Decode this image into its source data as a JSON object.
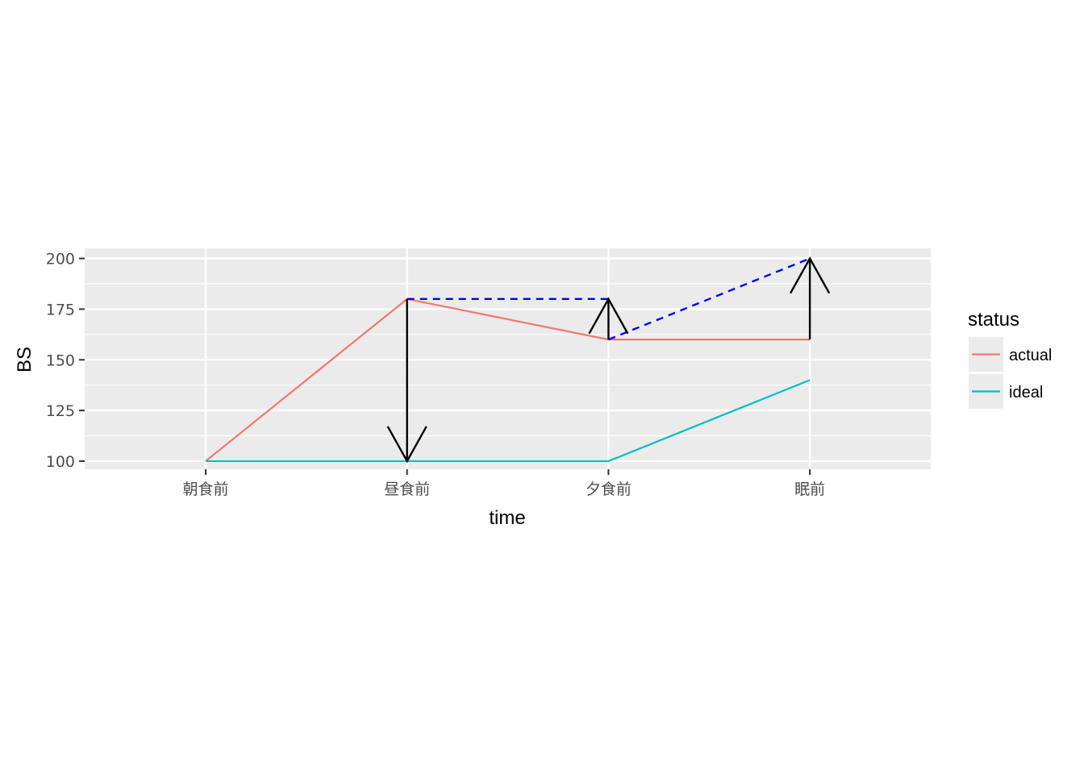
{
  "chart_data": {
    "type": "line",
    "categories": [
      "朝食前",
      "昼食前",
      "夕食前",
      "眠前"
    ],
    "xlabel": "time",
    "ylabel": "BS",
    "ylim": [
      96,
      205
    ],
    "yticks": [
      100,
      125,
      150,
      175,
      200
    ],
    "grid": true,
    "legend": {
      "title": "status",
      "position": "right"
    },
    "series": [
      {
        "name": "actual",
        "values": [
          100,
          180,
          160,
          160
        ],
        "color": "#F8766D"
      },
      {
        "name": "ideal",
        "values": [
          100,
          100,
          100,
          140
        ],
        "color": "#00BFC4"
      }
    ],
    "dashed_segments": [
      {
        "from": [
          "昼食前",
          180
        ],
        "to": [
          "夕食前",
          180
        ],
        "color": "#0000FF"
      },
      {
        "from": [
          "夕食前",
          160
        ],
        "to": [
          "眠前",
          200
        ],
        "color": "#0000FF"
      }
    ],
    "arrows": [
      {
        "x": "昼食前",
        "from": 180,
        "to": 100,
        "color": "#000000"
      },
      {
        "x": "夕食前",
        "from": 160,
        "to": 180,
        "color": "#000000"
      },
      {
        "x": "眠前",
        "from": 160,
        "to": 200,
        "color": "#000000"
      }
    ],
    "colors": {
      "panel_background": "#EBEBEB",
      "grid": "#FFFFFF",
      "axis_text": "#4D4D4D"
    }
  }
}
